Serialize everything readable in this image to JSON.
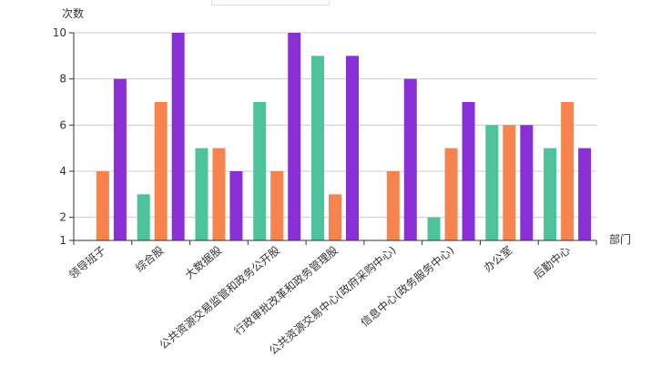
{
  "chart_data": {
    "type": "bar",
    "ylabel": "次数",
    "xlabel": "部门",
    "categories": [
      "领导班子",
      "综合股",
      "大数据股",
      "公共资源交易监管和政务公开股",
      "行政审批改革和政务管理股",
      "公共资源交易中心(政府采购中心)",
      "信息中心(政务服务中心)",
      "办公室",
      "后勤中心"
    ],
    "series": [
      {
        "color": "#4cc39a",
        "values": [
          null,
          3,
          5,
          7,
          9,
          null,
          2,
          6,
          5
        ]
      },
      {
        "color": "#f7844f",
        "values": [
          4,
          7,
          5,
          4,
          3,
          4,
          5,
          6,
          7
        ]
      },
      {
        "color": "#8a2fd6",
        "values": [
          8,
          10,
          4,
          10,
          9,
          8,
          7,
          6,
          5
        ]
      }
    ],
    "ylim": [
      1,
      10
    ],
    "yticks": [
      1,
      2,
      4,
      6,
      8,
      10
    ],
    "grid": true
  }
}
